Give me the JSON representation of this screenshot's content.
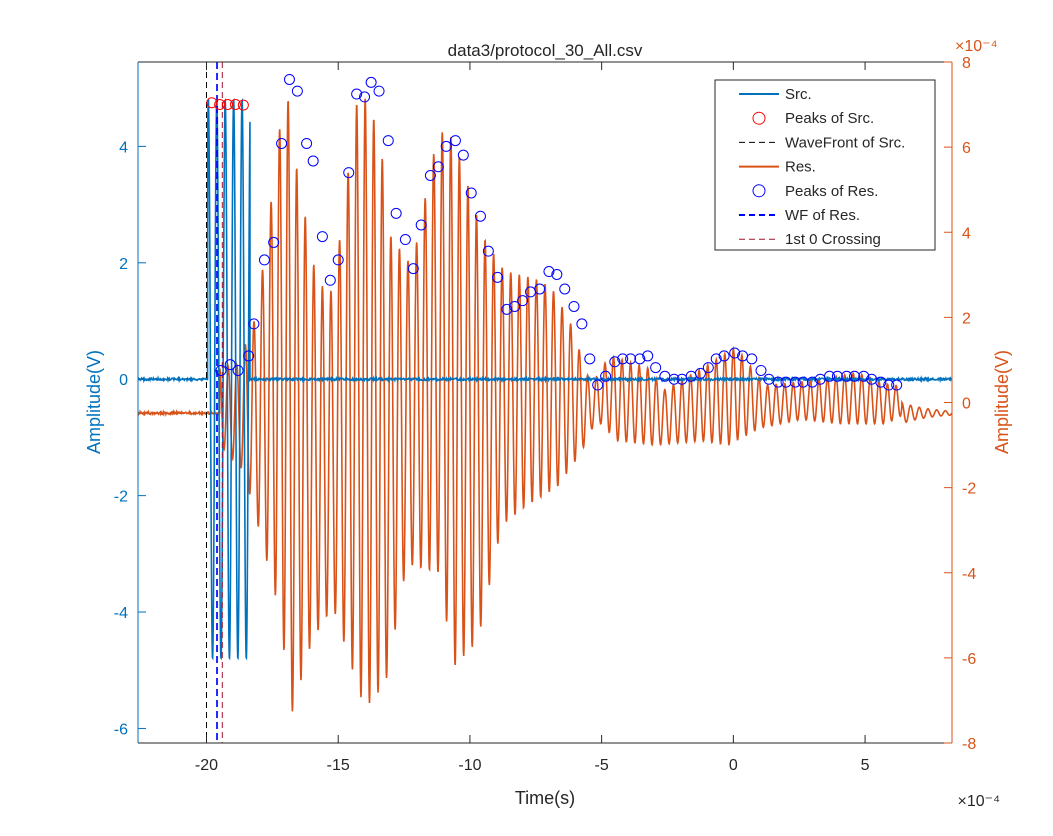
{
  "chart_data": {
    "type": "line",
    "title": "data3/protocol_30_All.csv",
    "xlabel": "Time(s)",
    "ylabel_left": "Amplitude(V)",
    "ylabel_right": "Amplitude(V)",
    "x_exponent": "×10⁻⁴",
    "yright_exponent": "×10⁻⁴",
    "xlim": [
      -22.6,
      8.3
    ],
    "ylim_left": [
      -6.25,
      5.45
    ],
    "ylim_right": [
      -8,
      8
    ],
    "x_ticks": [
      -20,
      -15,
      -10,
      -5,
      0,
      5
    ],
    "x_tick_labels": [
      "-20",
      "-15",
      "-10",
      "-5",
      "0",
      "5"
    ],
    "yleft_ticks": [
      -6,
      -4,
      -2,
      0,
      2,
      4
    ],
    "yleft_tick_labels": [
      "-6",
      "-4",
      "-2",
      "0",
      "2",
      "4"
    ],
    "yright_ticks": [
      -8,
      -6,
      -4,
      -2,
      0,
      2,
      4,
      6,
      8
    ],
    "yright_tick_labels": [
      "-8",
      "-6",
      "-4",
      "-2",
      "0",
      "2",
      "4",
      "6",
      "8"
    ],
    "grid": false,
    "legend_position": "top-right",
    "colors": {
      "src": "#0072BD",
      "res": "#D95319",
      "peaks_src": "#FF0000",
      "peaks_res": "#0000FF",
      "wavefront_src": "#000000",
      "wf_res": "#0000FF",
      "zero_crossing": "#A2142F",
      "axis_left": "#0072BD",
      "axis_right": "#D95319"
    },
    "series": [
      {
        "name": "Src.",
        "axis": "left",
        "style": "line",
        "baseline": 0.0,
        "burst_start": -19.95,
        "burst_end": -18.35,
        "burst_period": 0.32,
        "burst_amplitude": 4.8
      },
      {
        "name": "Peaks of Src.",
        "axis": "left",
        "style": "marker",
        "points": [
          [
            -19.8,
            4.75
          ],
          [
            -19.5,
            4.72
          ],
          [
            -19.2,
            4.72
          ],
          [
            -18.9,
            4.72
          ],
          [
            -18.6,
            4.71
          ]
        ]
      },
      {
        "name": "WaveFront of Src.",
        "axis": "left",
        "style": "vline",
        "x": -20.0
      },
      {
        "name": "Res.",
        "axis": "right",
        "style": "line",
        "baseline": -0.25,
        "start": -19.5,
        "end": 6.4,
        "period": 0.325,
        "envelope_peaks": [
          [
            -19.5,
            0.8
          ],
          [
            -18.8,
            0.9
          ],
          [
            -18.2,
            1.9
          ],
          [
            -17.8,
            3.4
          ],
          [
            -17.0,
            7.6
          ],
          [
            -16.6,
            5.6
          ],
          [
            -15.8,
            2.8
          ],
          [
            -15.2,
            2.6
          ],
          [
            -14.2,
            7.5
          ],
          [
            -13.4,
            6.3
          ],
          [
            -13.1,
            4.0
          ],
          [
            -12.2,
            3.2
          ],
          [
            -11.2,
            6.4
          ],
          [
            -10.6,
            6.2
          ],
          [
            -9.5,
            3.9
          ],
          [
            -8.7,
            3.1
          ],
          [
            -7.5,
            2.9
          ],
          [
            -6.9,
            2.7
          ],
          [
            -6.2,
            1.9
          ],
          [
            -5.4,
            0.4
          ],
          [
            -4.7,
            1.1
          ],
          [
            -3.2,
            0.8
          ],
          [
            -2.6,
            0.3
          ],
          [
            -1.2,
            0.8
          ],
          [
            0.1,
            1.3
          ],
          [
            1.2,
            0.4
          ],
          [
            2.8,
            0.5
          ],
          [
            4.7,
            0.7
          ],
          [
            6.0,
            0.4
          ]
        ],
        "envelope_troughs": [
          [
            -19.5,
            -1.0
          ],
          [
            -18.6,
            -1.6
          ],
          [
            -18.0,
            -3.0
          ],
          [
            -17.2,
            -5.0
          ],
          [
            -16.8,
            -7.4
          ],
          [
            -16.0,
            -5.6
          ],
          [
            -15.2,
            -4.8
          ],
          [
            -14.0,
            -7.2
          ],
          [
            -13.2,
            -6.6
          ],
          [
            -12.4,
            -3.8
          ],
          [
            -11.2,
            -4.0
          ],
          [
            -10.6,
            -6.2
          ],
          [
            -9.7,
            -5.6
          ],
          [
            -8.8,
            -2.9
          ],
          [
            -7.8,
            -2.4
          ],
          [
            -6.7,
            -2.0
          ],
          [
            -5.8,
            -1.2
          ],
          [
            -5.2,
            -0.4
          ],
          [
            -4.4,
            -0.9
          ],
          [
            -3.0,
            -1.0
          ],
          [
            -1.2,
            -0.9
          ],
          [
            -0.2,
            -1.0
          ],
          [
            1.0,
            -0.6
          ],
          [
            2.6,
            -0.4
          ],
          [
            4.0,
            -0.5
          ],
          [
            5.8,
            -0.5
          ],
          [
            6.4,
            -0.3
          ]
        ],
        "tail_end": 8.3,
        "tail_period": 0.33,
        "tail_amplitude": 0.25
      },
      {
        "name": "Peaks of Res.",
        "axis": "left",
        "style": "marker",
        "points": [
          [
            -19.45,
            0.15
          ],
          [
            -19.1,
            0.25
          ],
          [
            -18.8,
            0.15
          ],
          [
            -18.4,
            0.4
          ],
          [
            -18.2,
            0.95
          ],
          [
            -17.8,
            2.05
          ],
          [
            -17.45,
            2.35
          ],
          [
            -17.15,
            4.05
          ],
          [
            -16.85,
            5.15
          ],
          [
            -16.55,
            4.95
          ],
          [
            -16.2,
            4.05
          ],
          [
            -15.95,
            3.75
          ],
          [
            -15.6,
            2.45
          ],
          [
            -15.3,
            1.7
          ],
          [
            -15.0,
            2.05
          ],
          [
            -14.6,
            3.55
          ],
          [
            -14.3,
            4.9
          ],
          [
            -14.0,
            4.85
          ],
          [
            -13.75,
            5.1
          ],
          [
            -13.45,
            4.95
          ],
          [
            -13.1,
            4.1
          ],
          [
            -12.8,
            2.85
          ],
          [
            -12.45,
            2.4
          ],
          [
            -12.15,
            1.9
          ],
          [
            -11.85,
            2.65
          ],
          [
            -11.5,
            3.5
          ],
          [
            -11.2,
            3.65
          ],
          [
            -10.9,
            4.0
          ],
          [
            -10.55,
            4.1
          ],
          [
            -10.25,
            3.85
          ],
          [
            -9.95,
            3.2
          ],
          [
            -9.6,
            2.8
          ],
          [
            -9.3,
            2.2
          ],
          [
            -8.95,
            1.75
          ],
          [
            -8.6,
            1.2
          ],
          [
            -8.3,
            1.25
          ],
          [
            -8.0,
            1.35
          ],
          [
            -7.7,
            1.5
          ],
          [
            -7.35,
            1.55
          ],
          [
            -7.0,
            1.85
          ],
          [
            -6.7,
            1.8
          ],
          [
            -6.4,
            1.55
          ],
          [
            -6.05,
            1.25
          ],
          [
            -5.75,
            0.95
          ],
          [
            -5.45,
            0.35
          ],
          [
            -5.15,
            -0.1
          ],
          [
            -4.85,
            0.05
          ],
          [
            -4.5,
            0.3
          ],
          [
            -4.2,
            0.35
          ],
          [
            -3.9,
            0.35
          ],
          [
            -3.55,
            0.35
          ],
          [
            -3.25,
            0.4
          ],
          [
            -2.95,
            0.2
          ],
          [
            -2.6,
            0.05
          ],
          [
            -2.25,
            0.0
          ],
          [
            -1.95,
            0.0
          ],
          [
            -1.6,
            0.05
          ],
          [
            -1.25,
            0.1
          ],
          [
            -0.95,
            0.2
          ],
          [
            -0.65,
            0.35
          ],
          [
            -0.35,
            0.4
          ],
          [
            0.05,
            0.45
          ],
          [
            0.35,
            0.4
          ],
          [
            0.7,
            0.35
          ],
          [
            1.05,
            0.15
          ],
          [
            1.35,
            0.0
          ],
          [
            1.7,
            -0.05
          ],
          [
            2.0,
            -0.05
          ],
          [
            2.35,
            -0.05
          ],
          [
            2.65,
            -0.05
          ],
          [
            3.0,
            -0.05
          ],
          [
            3.3,
            0.0
          ],
          [
            3.65,
            0.05
          ],
          [
            3.95,
            0.05
          ],
          [
            4.3,
            0.05
          ],
          [
            4.6,
            0.05
          ],
          [
            4.95,
            0.05
          ],
          [
            5.25,
            0.0
          ],
          [
            5.6,
            -0.05
          ],
          [
            5.9,
            -0.1
          ],
          [
            6.2,
            -0.1
          ]
        ]
      },
      {
        "name": "WF of Res.",
        "axis": "left",
        "style": "vline",
        "x": -19.6
      },
      {
        "name": "1st 0 Crossing",
        "axis": "left",
        "style": "vline",
        "x": -19.4
      }
    ]
  }
}
